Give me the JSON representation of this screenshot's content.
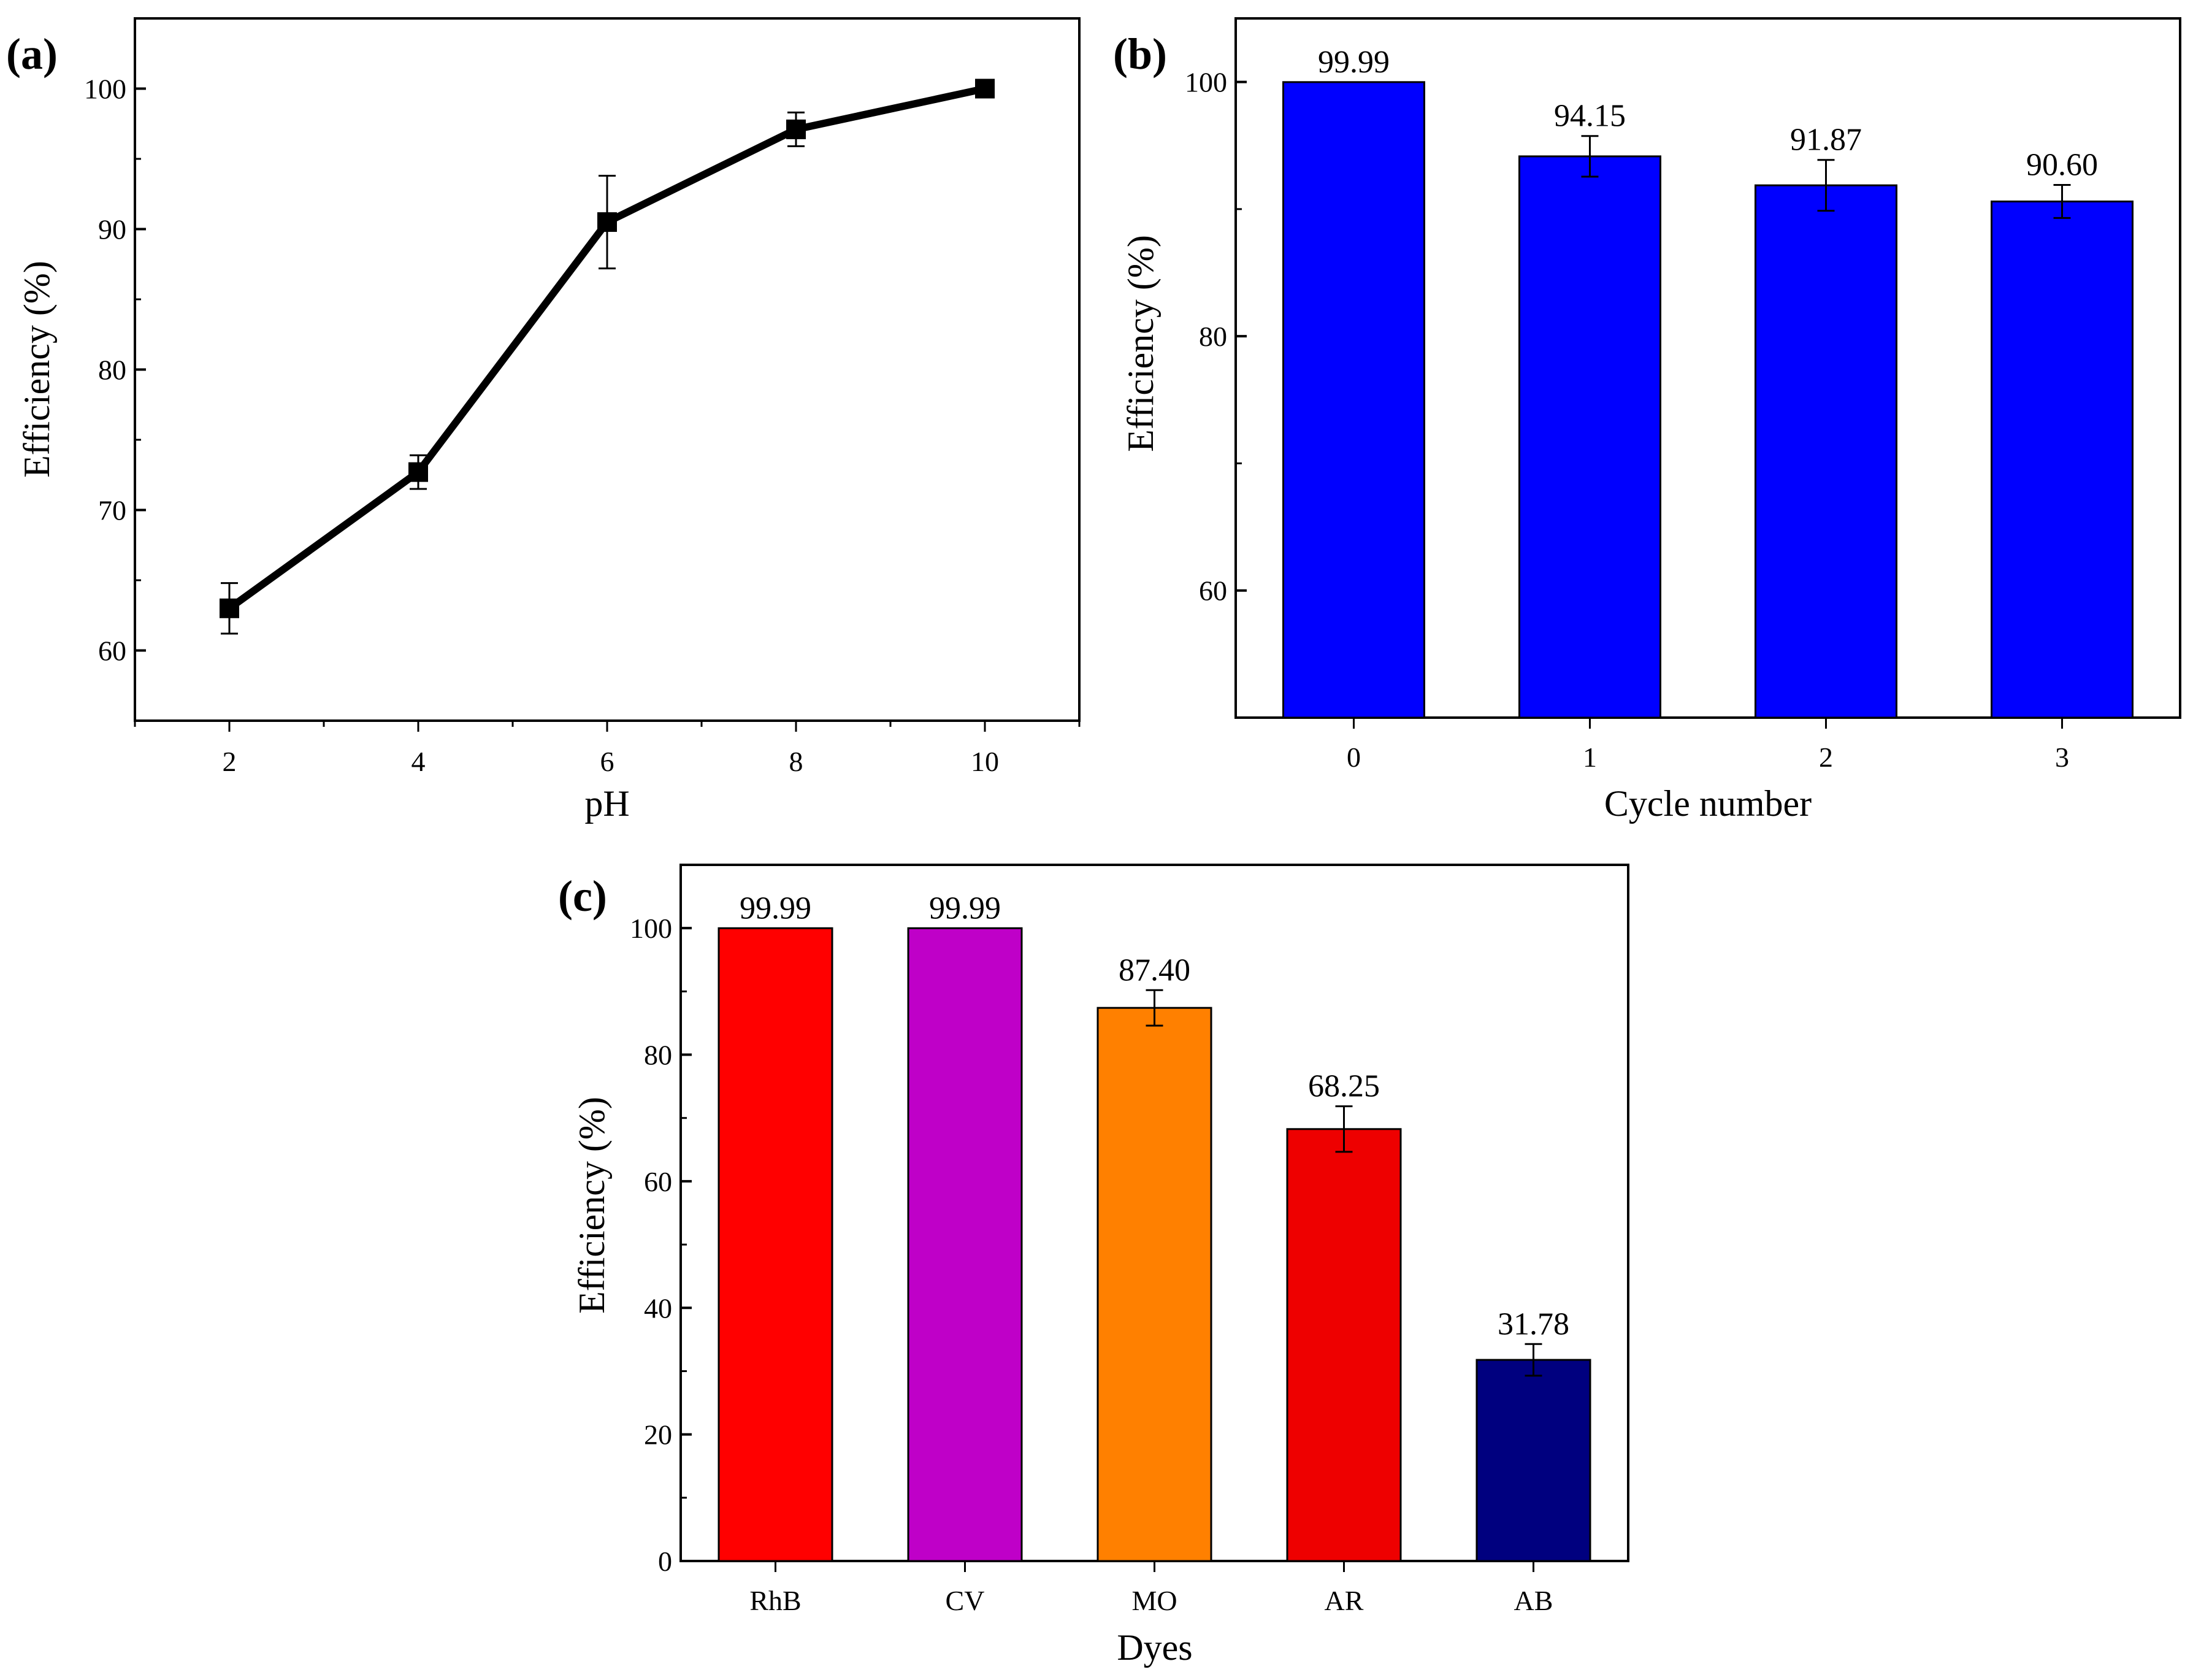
{
  "chart_data": [
    {
      "id": "a",
      "panel_label": "(a)",
      "type": "line",
      "title": "",
      "xlabel": "pH",
      "ylabel": "Efficiency (%)",
      "xlim": [
        1,
        11
      ],
      "ylim": [
        55,
        105
      ],
      "xticks": [
        2,
        4,
        6,
        8,
        10
      ],
      "yticks": [
        60,
        70,
        80,
        90,
        100
      ],
      "x": [
        2,
        4,
        6,
        8,
        10
      ],
      "values": [
        63.0,
        72.7,
        90.5,
        97.1,
        100.0
      ],
      "errors": [
        1.8,
        1.2,
        3.3,
        1.2,
        0
      ],
      "marker": "square",
      "color": "#000000"
    },
    {
      "id": "b",
      "panel_label": "(b)",
      "type": "bar",
      "title": "",
      "xlabel": "Cycle number",
      "ylabel": "Efficiency (%)",
      "ylim": [
        50,
        105
      ],
      "yticks": [
        60,
        80,
        100
      ],
      "categories": [
        "0",
        "1",
        "2",
        "3"
      ],
      "values": [
        99.99,
        94.15,
        91.87,
        90.6
      ],
      "value_labels": [
        "99.99",
        "94.15",
        "91.87",
        "90.60"
      ],
      "errors": [
        0,
        1.6,
        2.0,
        1.3
      ],
      "colors": [
        "#0000FF",
        "#0000FF",
        "#0000FF",
        "#0000FF"
      ]
    },
    {
      "id": "c",
      "panel_label": "(c)",
      "type": "bar",
      "title": "",
      "xlabel": "Dyes",
      "ylabel": "Efficiency (%)",
      "ylim": [
        0,
        110
      ],
      "yticks": [
        0,
        20,
        40,
        60,
        80,
        100
      ],
      "categories": [
        "RhB",
        "CV",
        "MO",
        "AR",
        "AB"
      ],
      "values": [
        99.99,
        99.99,
        87.4,
        68.25,
        31.78
      ],
      "value_labels": [
        "99.99",
        "99.99",
        "87.40",
        "68.25",
        "31.78"
      ],
      "errors": [
        0,
        0,
        2.8,
        3.6,
        2.5
      ],
      "colors": [
        "#FF0000",
        "#BF00C8",
        "#FF8000",
        "#EE0000",
        "#00007F"
      ]
    }
  ]
}
